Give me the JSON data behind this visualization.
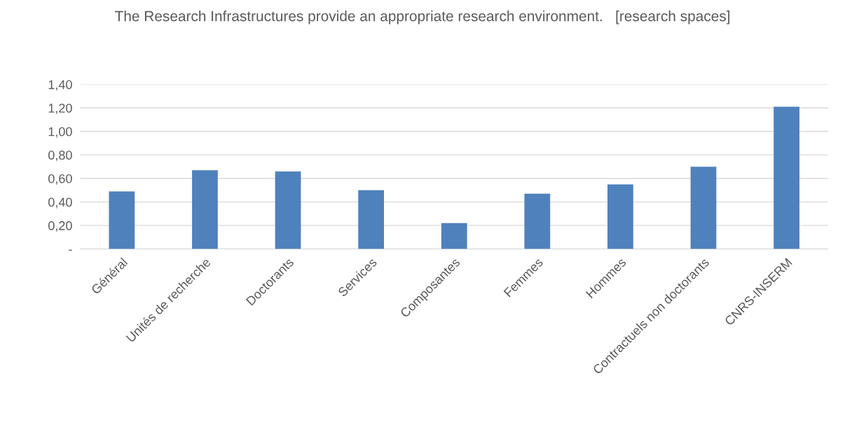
{
  "chart_data": {
    "type": "bar",
    "title": "The Research Infrastructures provide an appropriate research environment.   [research spaces]",
    "categories": [
      "Général",
      "Unités de recherche",
      "Doctorants",
      "Services",
      "Composantes",
      "Femmes",
      "Hommes",
      "Contractuels non doctorants",
      "CNRS-INSERM"
    ],
    "values": [
      0.49,
      0.67,
      0.66,
      0.5,
      0.22,
      0.47,
      0.55,
      0.7,
      1.21
    ],
    "color": "#4f81bd",
    "ylim": [
      0,
      1.4
    ],
    "yticks": [
      {
        "value": 0,
        "label": "-"
      },
      {
        "value": 0.2,
        "label": "0,20"
      },
      {
        "value": 0.4,
        "label": "0,40"
      },
      {
        "value": 0.6,
        "label": "0,60"
      },
      {
        "value": 0.8,
        "label": "0,80"
      },
      {
        "value": 1.0,
        "label": "1,00"
      },
      {
        "value": 1.2,
        "label": "1,20"
      },
      {
        "value": 1.4,
        "label": "1,40"
      }
    ],
    "grid": "y",
    "legend": false
  }
}
